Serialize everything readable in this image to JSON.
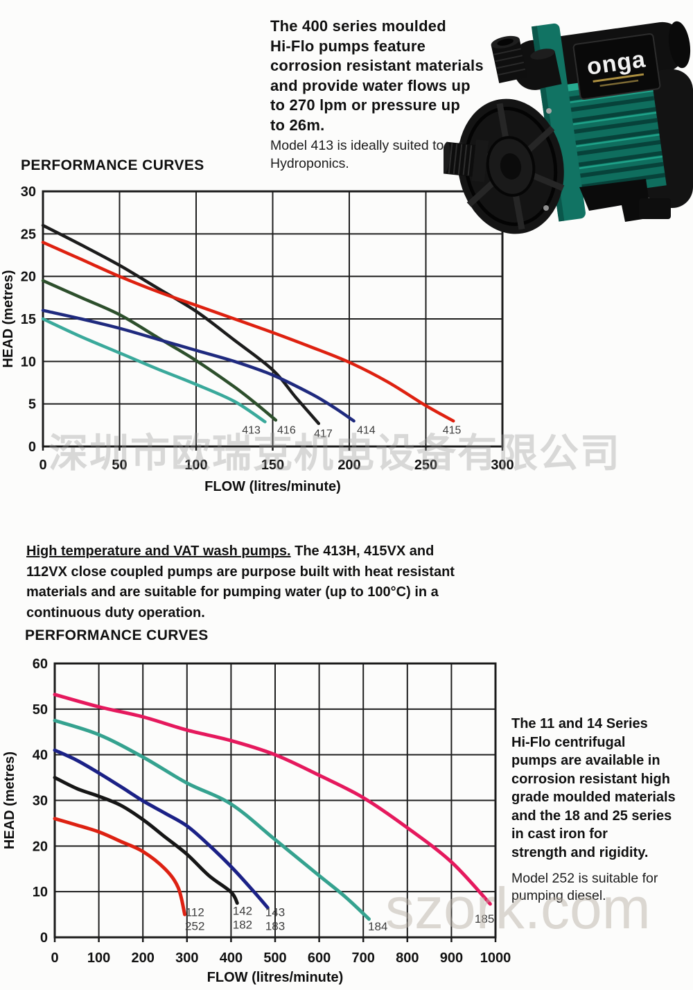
{
  "page": {
    "watermark_cn": "深圳市欧瑞克机电设备有限公司",
    "watermark_en": "szork.com"
  },
  "intro": {
    "paragraph": "The 400 series moulded\nHi-Flo pumps feature\ncorrosion resistant materials\nand provide water flows up\nto 270 lpm or pressure up\nto 26m.",
    "note": "Model 413 is ideally suited to\nHydroponics."
  },
  "pump": {
    "brand": "onga"
  },
  "mid": {
    "heading": "High temperature and VAT wash pumps.",
    "body": " The 413H, 415VX and\n112VX close coupled pumps are purpose built with heat resistant\nmaterials and are suitable for pumping water (up to 100°C) in a\ncontinuous duty operation."
  },
  "series_info": {
    "paragraph": "The 11 and 14 Series\nHi-Flo centrifugal\npumps are available in\ncorrosion resistant high\ngrade moulded materials\nand the 18 and 25 series\nin cast iron for\nstrength and rigidity.",
    "note": "Model 252 is suitable for\npumping diesel."
  },
  "chart_data": [
    {
      "type": "line",
      "title": "PERFORMANCE CURVES",
      "xlabel": "FLOW (litres/minute)",
      "ylabel": "HEAD (metres)",
      "xlim": [
        0,
        300
      ],
      "ylim": [
        0,
        30
      ],
      "xticks": [
        0,
        50,
        100,
        150,
        200,
        250,
        300
      ],
      "yticks": [
        0,
        5,
        10,
        15,
        20,
        25,
        30
      ],
      "grid": true,
      "legend_position": "none",
      "series": [
        {
          "name": "417",
          "color": "#1c1c1c",
          "points": [
            [
              0,
              26
            ],
            [
              25,
              23.7
            ],
            [
              50,
              21.3
            ],
            [
              75,
              18.6
            ],
            [
              100,
              15.9
            ],
            [
              125,
              12.5
            ],
            [
              150,
              9.0
            ],
            [
              165,
              5.8
            ],
            [
              180,
              2.7
            ]
          ]
        },
        {
          "name": "415",
          "color": "#de2110",
          "points": [
            [
              0,
              24
            ],
            [
              25,
              22
            ],
            [
              50,
              20
            ],
            [
              75,
              18.2
            ],
            [
              100,
              16.6
            ],
            [
              125,
              15.0
            ],
            [
              150,
              13.4
            ],
            [
              175,
              11.7
            ],
            [
              200,
              9.9
            ],
            [
              225,
              7.6
            ],
            [
              250,
              4.8
            ],
            [
              268,
              3.0
            ]
          ]
        },
        {
          "name": "416",
          "color": "#2d4f2c",
          "points": [
            [
              0,
              19.5
            ],
            [
              25,
              17.5
            ],
            [
              50,
              15.5
            ],
            [
              75,
              12.8
            ],
            [
              100,
              10.1
            ],
            [
              125,
              7.0
            ],
            [
              140,
              4.9
            ],
            [
              152,
              3.1
            ]
          ]
        },
        {
          "name": "414",
          "color": "#1f2a7e",
          "points": [
            [
              0,
              16
            ],
            [
              25,
              15
            ],
            [
              50,
              13.9
            ],
            [
              75,
              12.6
            ],
            [
              100,
              11.3
            ],
            [
              125,
              10.0
            ],
            [
              150,
              8.4
            ],
            [
              175,
              6.2
            ],
            [
              190,
              4.6
            ],
            [
              203,
              3.0
            ]
          ]
        },
        {
          "name": "413",
          "color": "#3aa99b",
          "points": [
            [
              0,
              15
            ],
            [
              25,
              12.9
            ],
            [
              50,
              11.0
            ],
            [
              75,
              9.1
            ],
            [
              100,
              7.3
            ],
            [
              125,
              5.3
            ],
            [
              145,
              2.9
            ]
          ]
        }
      ],
      "curve_labels": [
        {
          "lines": [
            "413"
          ],
          "x": 136,
          "y": 1.5
        },
        {
          "lines": [
            "416"
          ],
          "x": 159,
          "y": 1.5
        },
        {
          "lines": [
            "417"
          ],
          "x": 183,
          "y": 1.1
        },
        {
          "lines": [
            "414"
          ],
          "x": 211,
          "y": 1.5
        },
        {
          "lines": [
            "415"
          ],
          "x": 267,
          "y": 1.5
        }
      ]
    },
    {
      "type": "line",
      "title": "PERFORMANCE CURVES",
      "xlabel": "FLOW (litres/minute)",
      "ylabel": "HEAD (metres)",
      "xlim": [
        0,
        1000
      ],
      "ylim": [
        0,
        60
      ],
      "xticks": [
        0,
        100,
        200,
        300,
        400,
        500,
        600,
        700,
        800,
        900,
        1000
      ],
      "yticks": [
        0,
        10,
        20,
        30,
        40,
        50,
        60
      ],
      "grid": true,
      "legend_position": "none",
      "series": [
        {
          "name": "185",
          "color": "#e5195d",
          "points": [
            [
              0,
              53.2
            ],
            [
              100,
              50.5
            ],
            [
              200,
              48.3
            ],
            [
              300,
              45.4
            ],
            [
              400,
              43.1
            ],
            [
              500,
              40.0
            ],
            [
              600,
              35.5
            ],
            [
              700,
              30.6
            ],
            [
              800,
              24.0
            ],
            [
              900,
              16.5
            ],
            [
              988,
              7.3
            ]
          ]
        },
        {
          "name": "184",
          "color": "#35a28f",
          "points": [
            [
              0,
              47.5
            ],
            [
              100,
              44.4
            ],
            [
              200,
              39.5
            ],
            [
              300,
              33.8
            ],
            [
              400,
              29.2
            ],
            [
              500,
              21.4
            ],
            [
              600,
              13.5
            ],
            [
              660,
              8.8
            ],
            [
              713,
              4.0
            ]
          ]
        },
        {
          "name": "143 / 183",
          "color": "#1b2186",
          "points": [
            [
              0,
              41
            ],
            [
              50,
              38.8
            ],
            [
              100,
              36.0
            ],
            [
              150,
              33.0
            ],
            [
              200,
              29.9
            ],
            [
              250,
              27.2
            ],
            [
              300,
              24.4
            ],
            [
              350,
              20.2
            ],
            [
              400,
              15.5
            ],
            [
              450,
              10.2
            ],
            [
              483,
              6.5
            ]
          ]
        },
        {
          "name": "142 / 182",
          "color": "#161616",
          "points": [
            [
              0,
              35
            ],
            [
              50,
              32.6
            ],
            [
              100,
              30.9
            ],
            [
              150,
              28.9
            ],
            [
              200,
              25.8
            ],
            [
              250,
              22.0
            ],
            [
              300,
              18.2
            ],
            [
              350,
              13.5
            ],
            [
              400,
              9.9
            ],
            [
              414,
              7.5
            ]
          ]
        },
        {
          "name": "112 / 252",
          "color": "#dd2112",
          "points": [
            [
              0,
              26
            ],
            [
              50,
              24.6
            ],
            [
              100,
              23.1
            ],
            [
              150,
              21.0
            ],
            [
              200,
              18.8
            ],
            [
              250,
              15.0
            ],
            [
              280,
              10.9
            ],
            [
              295,
              5.0
            ]
          ]
        }
      ],
      "curve_labels": [
        {
          "lines": [
            "112",
            "252"
          ],
          "x": 318,
          "y": 4.6
        },
        {
          "lines": [
            "142",
            "182"
          ],
          "x": 426,
          "y": 4.9
        },
        {
          "lines": [
            "143",
            "183"
          ],
          "x": 500,
          "y": 4.6
        },
        {
          "lines": [
            "184"
          ],
          "x": 733,
          "y": 1.5
        },
        {
          "lines": [
            "185"
          ],
          "x": 975,
          "y": 3.2
        }
      ]
    }
  ]
}
